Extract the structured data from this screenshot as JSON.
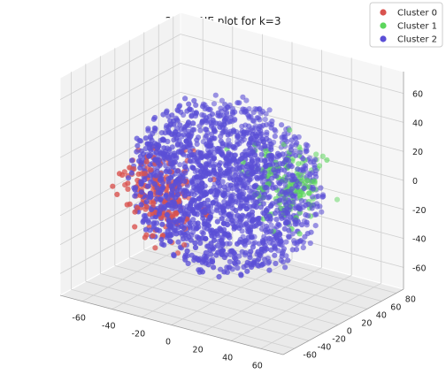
{
  "chart_data": {
    "type": "scatter",
    "title": "3D T-SNE plot for k=3",
    "xlim": [
      -75,
      75
    ],
    "ylim": [
      -75,
      90
    ],
    "zlim": [
      -75,
      75
    ],
    "x_ticks": [
      -60,
      -40,
      -20,
      0,
      20,
      40,
      60
    ],
    "y_ticks": [
      -60,
      -40,
      -20,
      0,
      20,
      40,
      60,
      80
    ],
    "z_ticks": [
      -60,
      -40,
      -20,
      0,
      20,
      40,
      60
    ],
    "grid": true,
    "legend_position": "top-right",
    "series": [
      {
        "name": "Cluster 0",
        "color": "#d9534f",
        "cloud": {
          "count": 190,
          "center": [
            -35,
            -20,
            -10
          ],
          "spread": [
            20,
            20,
            22
          ]
        }
      },
      {
        "name": "Cluster 1",
        "color": "#5cd65c",
        "cloud": {
          "count": 140,
          "center": [
            30,
            20,
            5
          ],
          "spread": [
            18,
            18,
            20
          ]
        }
      },
      {
        "name": "Cluster 2",
        "color": "#5b4fd6",
        "cloud": {
          "count": 1800,
          "center": [
            0,
            0,
            0
          ],
          "spread": [
            60,
            60,
            60
          ]
        }
      }
    ]
  }
}
